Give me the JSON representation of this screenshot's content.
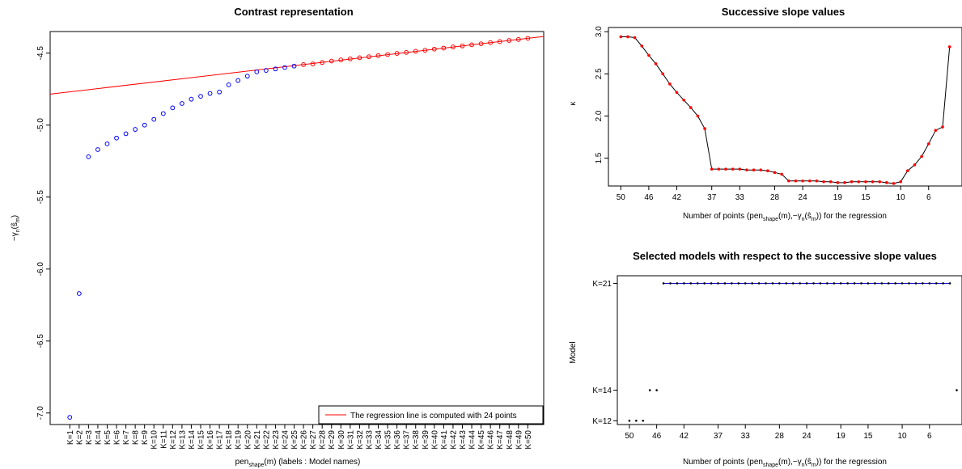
{
  "chart_data": [
    {
      "type": "scatter",
      "title": "Contrast representation",
      "xlabel": "pen_shape(m) (labels : Model names)",
      "ylabel": "-γn(ŝm)",
      "categories": [
        "K=1",
        "K=2",
        "K=3",
        "K=4",
        "K=5",
        "K=6",
        "K=7",
        "K=8",
        "K=9",
        "K=10",
        "K=11",
        "K=12",
        "K=13",
        "K=14",
        "K=15",
        "K=16",
        "K=17",
        "K=18",
        "K=19",
        "K=20",
        "K=21",
        "K=22",
        "K=23",
        "K=24",
        "K=25",
        "K=26",
        "K=27",
        "K=28",
        "K=29",
        "K=30",
        "K=31",
        "K=32",
        "K=33",
        "K=34",
        "K=35",
        "K=36",
        "K=37",
        "K=38",
        "K=39",
        "K=40",
        "K=41",
        "K=42",
        "K=43",
        "K=44",
        "K=45",
        "K=46",
        "K=47",
        "K=48",
        "K=49",
        "K=50"
      ],
      "yticks": [
        "-4.5",
        "-5.0",
        "-5.5",
        "-6.0",
        "-6.5",
        "-7.0"
      ],
      "ylim": [
        -7.08,
        -4.35
      ],
      "xlim": [
        -1.1,
        51.7
      ],
      "series": [
        {
          "color": "#0000ff",
          "values": [
            -7.03,
            -6.17,
            -5.22,
            -5.17,
            -5.13,
            -5.09,
            -5.06,
            -5.03,
            -5.0,
            -4.96,
            -4.92,
            -4.88,
            -4.85,
            -4.82,
            -4.8,
            -4.78,
            -4.77,
            -4.72,
            -4.69,
            -4.66,
            -4.63,
            -4.62,
            -4.61,
            -4.6,
            -4.59
          ]
        },
        {
          "color": "#ff0000",
          "values": [
            null,
            null,
            null,
            null,
            null,
            null,
            null,
            null,
            null,
            null,
            null,
            null,
            null,
            null,
            null,
            null,
            null,
            null,
            null,
            null,
            null,
            null,
            null,
            null,
            null,
            -4.58,
            -4.575,
            -4.565,
            -4.555,
            -4.547,
            -4.54,
            -4.532,
            -4.525,
            -4.517,
            -4.51,
            -4.502,
            -4.495,
            -4.487,
            -4.48,
            -4.472,
            -4.465,
            -4.457,
            -4.45,
            -4.442,
            -4.435,
            -4.427,
            -4.42,
            -4.412,
            -4.405,
            -4.397
          ]
        }
      ],
      "regression_line": {
        "slope": 0.007588,
        "intercept": -4.7765,
        "color": "#ff0000"
      },
      "legend": {
        "position": "bottom-right",
        "label": "The regression line is computed with 24 points",
        "color": "#ff0000"
      }
    },
    {
      "type": "line",
      "title": "Successive slope values",
      "xlabel": "Number of points (pen_shape(m), -γn(ŝm)) for the regression",
      "ylabel": "κ",
      "xticks": [
        "50",
        "46",
        "42",
        "37",
        "33",
        "28",
        "24",
        "19",
        "15",
        "10",
        "6"
      ],
      "xtick_values": [
        50,
        46,
        42,
        37,
        33,
        28,
        24,
        19,
        15,
        10,
        6
      ],
      "yticks": [
        "1.5",
        "2.0",
        "2.5",
        "3.0"
      ],
      "ytick_values": [
        1.5,
        2.0,
        2.5,
        3.0
      ],
      "xlim": [
        51.77,
        1.23
      ],
      "ylim": [
        1.17,
        3.05
      ],
      "x": [
        50,
        49,
        48,
        47,
        46,
        45,
        44,
        43,
        42,
        41,
        40,
        39,
        38,
        37,
        36,
        35,
        34,
        33,
        32,
        31,
        30,
        29,
        28,
        27,
        26,
        25,
        24,
        23,
        22,
        21,
        20,
        19,
        18,
        17,
        16,
        15,
        14,
        13,
        12,
        11,
        10,
        9,
        8,
        7,
        6,
        5,
        4,
        3,
        2
      ],
      "values": [
        2.94,
        2.94,
        2.93,
        2.83,
        2.72,
        2.62,
        2.5,
        2.38,
        2.28,
        2.19,
        2.1,
        2.0,
        1.85,
        1.37,
        1.37,
        1.37,
        1.37,
        1.37,
        1.36,
        1.36,
        1.36,
        1.35,
        1.33,
        1.31,
        1.23,
        1.23,
        1.23,
        1.23,
        1.23,
        1.22,
        1.22,
        1.21,
        1.21,
        1.22,
        1.22,
        1.22,
        1.22,
        1.22,
        1.21,
        1.2,
        1.22,
        1.35,
        1.42,
        1.52,
        1.67,
        1.83,
        1.87,
        2.82,
        null
      ],
      "line_color": "#000000",
      "point_color": "#ff0000"
    },
    {
      "type": "scatter",
      "title": "Selected models with respect to the successive slope values",
      "xlabel": "Number of points (pen_shape(m), -γn(ŝm)) for the regression",
      "ylabel": "Model",
      "xticks": [
        "50",
        "46",
        "42",
        "37",
        "33",
        "28",
        "24",
        "19",
        "15",
        "10",
        "6"
      ],
      "xtick_values": [
        50,
        46,
        42,
        37,
        33,
        28,
        24,
        19,
        15,
        10,
        6
      ],
      "yticks": [
        "K=21",
        "K=14",
        "K=12"
      ],
      "ytick_values": [
        21,
        14,
        12
      ],
      "xlim": [
        51.77,
        1.23
      ],
      "ylim": [
        11.75,
        21.5
      ],
      "points": [
        {
          "x": 50,
          "model": 12
        },
        {
          "x": 49,
          "model": 12
        },
        {
          "x": 48,
          "model": 12
        },
        {
          "x": 47,
          "model": 14
        },
        {
          "x": 46,
          "model": 14
        },
        {
          "x": 45,
          "model": 21
        },
        {
          "x": 44,
          "model": 21
        },
        {
          "x": 43,
          "model": 21
        },
        {
          "x": 42,
          "model": 21
        },
        {
          "x": 41,
          "model": 21
        },
        {
          "x": 40,
          "model": 21
        },
        {
          "x": 39,
          "model": 21
        },
        {
          "x": 38,
          "model": 21
        },
        {
          "x": 37,
          "model": 21
        },
        {
          "x": 36,
          "model": 21
        },
        {
          "x": 35,
          "model": 21
        },
        {
          "x": 34,
          "model": 21
        },
        {
          "x": 33,
          "model": 21
        },
        {
          "x": 32,
          "model": 21
        },
        {
          "x": 31,
          "model": 21
        },
        {
          "x": 30,
          "model": 21
        },
        {
          "x": 29,
          "model": 21
        },
        {
          "x": 28,
          "model": 21
        },
        {
          "x": 27,
          "model": 21
        },
        {
          "x": 26,
          "model": 21
        },
        {
          "x": 25,
          "model": 21
        },
        {
          "x": 24,
          "model": 21
        },
        {
          "x": 23,
          "model": 21
        },
        {
          "x": 22,
          "model": 21
        },
        {
          "x": 21,
          "model": 21
        },
        {
          "x": 20,
          "model": 21
        },
        {
          "x": 19,
          "model": 21
        },
        {
          "x": 18,
          "model": 21
        },
        {
          "x": 17,
          "model": 21
        },
        {
          "x": 16,
          "model": 21
        },
        {
          "x": 15,
          "model": 21
        },
        {
          "x": 14,
          "model": 21
        },
        {
          "x": 13,
          "model": 21
        },
        {
          "x": 12,
          "model": 21
        },
        {
          "x": 11,
          "model": 21
        },
        {
          "x": 10,
          "model": 21
        },
        {
          "x": 9,
          "model": 21
        },
        {
          "x": 8,
          "model": 21
        },
        {
          "x": 7,
          "model": 21
        },
        {
          "x": 6,
          "model": 21
        },
        {
          "x": 5,
          "model": 21
        },
        {
          "x": 4,
          "model": 21
        },
        {
          "x": 3,
          "model": 21
        },
        {
          "x": 2,
          "model": 14
        }
      ],
      "line_color": "#0000cc",
      "point_color": "#000000"
    }
  ]
}
